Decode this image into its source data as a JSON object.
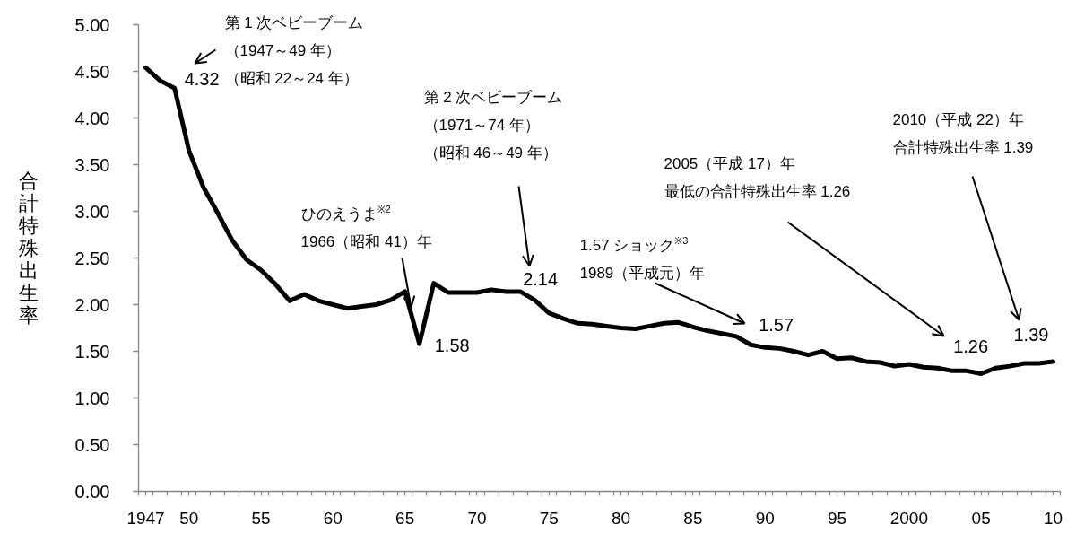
{
  "chart_data": {
    "type": "line",
    "ylabel": "合計特殊出生率",
    "x": [
      1947,
      1948,
      1949,
      1950,
      1951,
      1952,
      1953,
      1954,
      1955,
      1956,
      1957,
      1958,
      1959,
      1960,
      1961,
      1962,
      1963,
      1964,
      1965,
      1966,
      1967,
      1968,
      1969,
      1970,
      1971,
      1972,
      1973,
      1974,
      1975,
      1976,
      1977,
      1978,
      1979,
      1980,
      1981,
      1982,
      1983,
      1984,
      1985,
      1986,
      1987,
      1988,
      1989,
      1990,
      1991,
      1992,
      1993,
      1994,
      1995,
      1996,
      1997,
      1998,
      1999,
      2000,
      2001,
      2002,
      2003,
      2004,
      2005,
      2006,
      2007,
      2008,
      2009,
      2010
    ],
    "series": [
      {
        "color": "#000000",
        "values": [
          4.54,
          4.4,
          4.32,
          3.65,
          3.26,
          2.98,
          2.69,
          2.48,
          2.37,
          2.22,
          2.04,
          2.11,
          2.04,
          2.0,
          1.96,
          1.98,
          2.0,
          2.05,
          2.14,
          1.58,
          2.23,
          2.13,
          2.13,
          2.13,
          2.16,
          2.14,
          2.14,
          2.05,
          1.91,
          1.85,
          1.8,
          1.79,
          1.77,
          1.75,
          1.74,
          1.77,
          1.8,
          1.81,
          1.76,
          1.72,
          1.69,
          1.66,
          1.57,
          1.54,
          1.53,
          1.5,
          1.46,
          1.5,
          1.42,
          1.43,
          1.39,
          1.38,
          1.34,
          1.36,
          1.33,
          1.32,
          1.29,
          1.29,
          1.26,
          1.32,
          1.34,
          1.37,
          1.37,
          1.39
        ],
        "value_labels": [
          null,
          null,
          "4.32",
          null,
          null,
          null,
          null,
          null,
          null,
          null,
          null,
          null,
          null,
          null,
          null,
          null,
          null,
          null,
          null,
          "1.58",
          null,
          null,
          null,
          null,
          null,
          null,
          "2.14",
          null,
          null,
          null,
          null,
          null,
          null,
          null,
          null,
          null,
          null,
          null,
          null,
          null,
          null,
          null,
          "1.57",
          null,
          null,
          null,
          null,
          null,
          null,
          null,
          null,
          null,
          null,
          null,
          null,
          null,
          null,
          null,
          "1.26",
          null,
          null,
          null,
          null,
          "1.39"
        ]
      }
    ],
    "xlim": [
      1946.5,
      2010.5
    ],
    "xticks": [
      {
        "value": 1947,
        "label": "1947"
      },
      {
        "value": 1950,
        "label": "50"
      },
      {
        "value": 1955,
        "label": "55"
      },
      {
        "value": 1960,
        "label": "60"
      },
      {
        "value": 1965,
        "label": "65"
      },
      {
        "value": 1970,
        "label": "70"
      },
      {
        "value": 1975,
        "label": "75"
      },
      {
        "value": 1980,
        "label": "80"
      },
      {
        "value": 1985,
        "label": "85"
      },
      {
        "value": 1990,
        "label": "90"
      },
      {
        "value": 1995,
        "label": "95"
      },
      {
        "value": 2000,
        "label": "2000"
      },
      {
        "value": 2005,
        "label": "05"
      },
      {
        "value": 2010,
        "label": "10"
      },
      {
        "value": 1946.5,
        "label": null
      },
      {
        "value": 1947.5,
        "label": null
      },
      {
        "value": 1948.5,
        "label": null
      },
      {
        "value": 1949.5,
        "label": null
      },
      {
        "value": 1950.5,
        "label": null
      },
      {
        "value": 1951.5,
        "label": null
      },
      {
        "value": 1952.5,
        "label": null
      },
      {
        "value": 1953.5,
        "label": null
      },
      {
        "value": 1954.5,
        "label": null
      },
      {
        "value": 1955.5,
        "label": null
      },
      {
        "value": 1956.5,
        "label": null
      },
      {
        "value": 1957.5,
        "label": null
      },
      {
        "value": 1958.5,
        "label": null
      },
      {
        "value": 1959.5,
        "label": null
      },
      {
        "value": 1960.5,
        "label": null
      },
      {
        "value": 1961.5,
        "label": null
      },
      {
        "value": 1962.5,
        "label": null
      },
      {
        "value": 1963.5,
        "label": null
      },
      {
        "value": 1964.5,
        "label": null
      },
      {
        "value": 1965.5,
        "label": null
      },
      {
        "value": 1966.5,
        "label": null
      },
      {
        "value": 1967.5,
        "label": null
      },
      {
        "value": 1968.5,
        "label": null
      },
      {
        "value": 1969.5,
        "label": null
      },
      {
        "value": 1970.5,
        "label": null
      },
      {
        "value": 1971.5,
        "label": null
      },
      {
        "value": 1972.5,
        "label": null
      },
      {
        "value": 1973.5,
        "label": null
      },
      {
        "value": 1974.5,
        "label": null
      },
      {
        "value": 1975.5,
        "label": null
      },
      {
        "value": 1976.5,
        "label": null
      },
      {
        "value": 1977.5,
        "label": null
      },
      {
        "value": 1978.5,
        "label": null
      },
      {
        "value": 1979.5,
        "label": null
      },
      {
        "value": 1980.5,
        "label": null
      },
      {
        "value": 1981.5,
        "label": null
      },
      {
        "value": 1982.5,
        "label": null
      },
      {
        "value": 1983.5,
        "label": null
      },
      {
        "value": 1984.5,
        "label": null
      },
      {
        "value": 1985.5,
        "label": null
      },
      {
        "value": 1986.5,
        "label": null
      },
      {
        "value": 1987.5,
        "label": null
      },
      {
        "value": 1988.5,
        "label": null
      },
      {
        "value": 1989.5,
        "label": null
      },
      {
        "value": 1990.5,
        "label": null
      },
      {
        "value": 1991.5,
        "label": null
      },
      {
        "value": 1992.5,
        "label": null
      },
      {
        "value": 1993.5,
        "label": null
      },
      {
        "value": 1994.5,
        "label": null
      },
      {
        "value": 1995.5,
        "label": null
      },
      {
        "value": 1996.5,
        "label": null
      },
      {
        "value": 1997.5,
        "label": null
      },
      {
        "value": 1998.5,
        "label": null
      },
      {
        "value": 1999.5,
        "label": null
      },
      {
        "value": 2000.5,
        "label": null
      },
      {
        "value": 2001.5,
        "label": null
      },
      {
        "value": 2002.5,
        "label": null
      },
      {
        "value": 2003.5,
        "label": null
      },
      {
        "value": 2004.5,
        "label": null
      },
      {
        "value": 2005.5,
        "label": null
      },
      {
        "value": 2006.5,
        "label": null
      },
      {
        "value": 2007.5,
        "label": null
      },
      {
        "value": 2008.5,
        "label": null
      },
      {
        "value": 2009.5,
        "label": null
      },
      {
        "value": 2010.5,
        "label": null
      }
    ],
    "ylim": [
      0,
      5
    ],
    "yticks": [
      {
        "value": 0,
        "label": "0.00"
      },
      {
        "value": 0.5,
        "label": "0.50"
      },
      {
        "value": 1,
        "label": "1.00"
      },
      {
        "value": 1.5,
        "label": "1.50"
      },
      {
        "value": 2,
        "label": "2.00"
      },
      {
        "value": 2.5,
        "label": "2.50"
      },
      {
        "value": 3,
        "label": "3.00"
      },
      {
        "value": 3.5,
        "label": "3.50"
      },
      {
        "value": 4,
        "label": "4.00"
      },
      {
        "value": 4.5,
        "label": "4.50"
      },
      {
        "value": 5,
        "label": "5.00"
      }
    ],
    "annotations": [
      "第 1 次ベビーブーム（1947～49 年）（昭和 22～24 年）",
      "ひのえうま$^{※2}$1966（昭和 41）年",
      "第 2 次ベビーブーム（1971～74 年）（昭和 46～49 年）",
      "1.57 ショック$^{※3}$1989（平成元）年",
      "2005（平成 17）年最低の合計特殊出生率 1.26",
      "2010（平成 22）年合計特殊出生率 1.39"
    ]
  }
}
